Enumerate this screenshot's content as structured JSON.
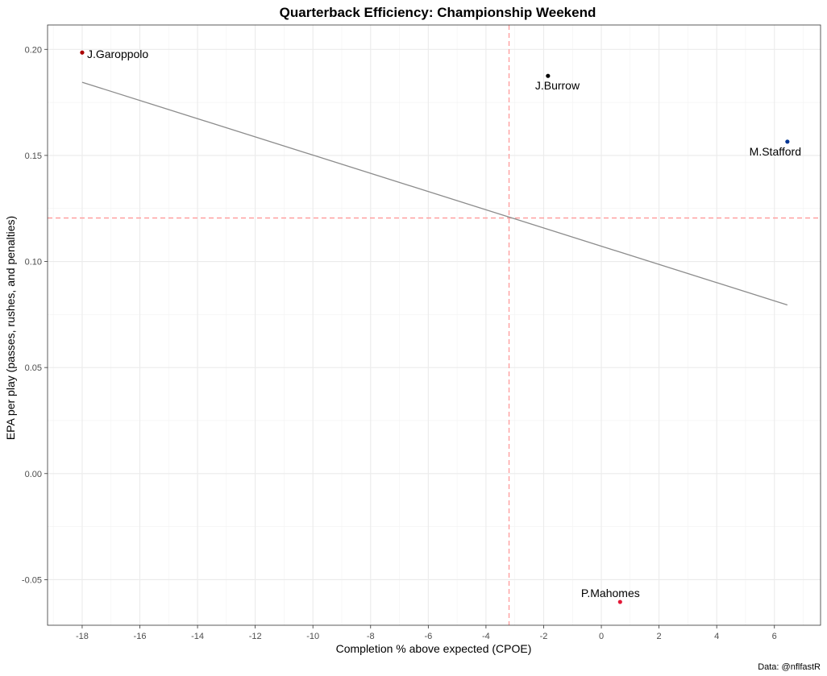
{
  "chart_data": {
    "type": "scatter",
    "title": "Quarterback Efficiency: Championship Weekend",
    "xlabel": "Completion % above expected (CPOE)",
    "ylabel": "EPA per play (passes, rushes, and penalties)",
    "caption": "Data: @nflfastR",
    "xlim": [
      -19.2,
      7.6
    ],
    "ylim": [
      -0.0715,
      0.2115
    ],
    "x_ticks": [
      -18,
      -16,
      -14,
      -12,
      -10,
      -8,
      -6,
      -4,
      -2,
      0,
      2,
      4,
      6
    ],
    "y_ticks": [
      -0.05,
      0.0,
      0.05,
      0.1,
      0.15,
      0.2
    ],
    "y_tick_labels": [
      "-0.05",
      "0.00",
      "0.05",
      "0.10",
      "0.15",
      "0.20"
    ],
    "grid": true,
    "points": [
      {
        "label": "J.Garoppolo",
        "x": -18.0,
        "y": 0.1985,
        "color": "#AA0000"
      },
      {
        "label": "J.Burrow",
        "x": -1.85,
        "y": 0.1875,
        "color": "#000000"
      },
      {
        "label": "M.Stafford",
        "x": 6.45,
        "y": 0.1565,
        "color": "#003594"
      },
      {
        "label": "P.Mahomes",
        "x": 0.65,
        "y": -0.0605,
        "color": "#E31837"
      }
    ],
    "trend_line": {
      "x": [
        -18.0,
        6.45
      ],
      "y": [
        0.1845,
        0.0795
      ],
      "color": "#8c8c8c"
    },
    "mean_lines": {
      "x": -3.2,
      "y": 0.1205,
      "color": "#ff9999"
    }
  }
}
